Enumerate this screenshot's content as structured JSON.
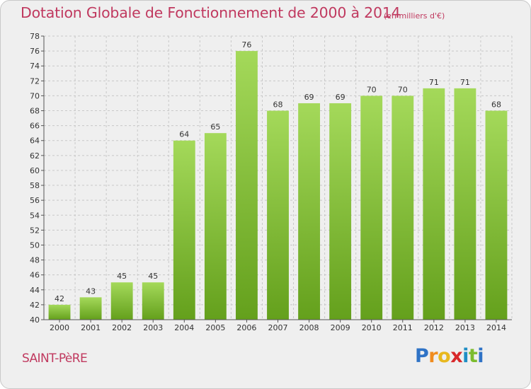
{
  "title": "Dotation Globale de Fonctionnement de 2000 à 2014",
  "subtitle": "(en milliers d'€)",
  "commune": "SAINT-PèRE",
  "logo": {
    "letters": [
      "P",
      "r",
      "o",
      "x",
      "i",
      "t",
      "i"
    ],
    "colors": [
      "#2f73c6",
      "#f08c1e",
      "#e8b81e",
      "#d8282a",
      "#1f8ec4",
      "#7cbc2e",
      "#2f73c6"
    ]
  },
  "chart_data": {
    "type": "bar",
    "title": "Dotation Globale de Fonctionnement de 2000 à 2014",
    "subtitle": "(en milliers d'€)",
    "xlabel": "",
    "ylabel": "",
    "categories": [
      "2000",
      "2001",
      "2002",
      "2003",
      "2004",
      "2005",
      "2006",
      "2007",
      "2008",
      "2009",
      "2010",
      "2011",
      "2012",
      "2013",
      "2014"
    ],
    "values": [
      42,
      43,
      45,
      45,
      64,
      65,
      76,
      68,
      69,
      69,
      70,
      70,
      71,
      71,
      68
    ],
    "ylim": [
      40,
      78
    ],
    "ytick_step": 2,
    "grid": true,
    "bar_color_light": "#a4d95a",
    "bar_color_dark": "#64a01c",
    "grid_color": "#c8c8c8"
  }
}
